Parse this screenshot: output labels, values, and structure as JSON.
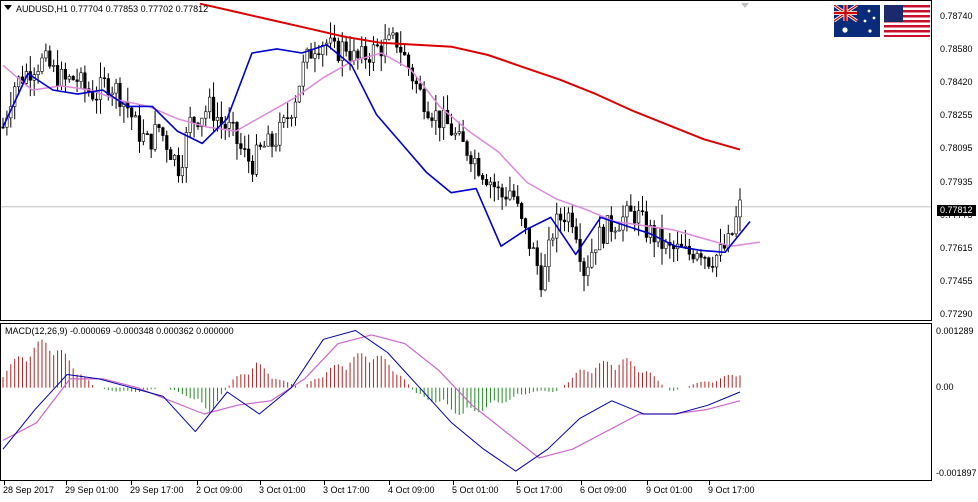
{
  "chart": {
    "title": "AUDUSD,H1",
    "ohlc": "0.77704 0.77853 0.77702 0.77812",
    "current_price": "0.77812"
  },
  "price_axis": [
    "0.78740",
    "0.78580",
    "0.78420",
    "0.78255",
    "0.78095",
    "0.77935",
    "0.77775",
    "0.77615",
    "0.77455",
    "0.77290"
  ],
  "macd": {
    "title": "MACD(12,26,9) -0.000069 -0.000348 0.000362 0.000000",
    "axis": [
      "0.001289",
      "0.00",
      "-0.001897"
    ]
  },
  "time_axis": [
    "28 Sep 2017",
    "29 Sep 01:00",
    "29 Sep 17:00",
    "2 Oct 09:00",
    "3 Oct 01:00",
    "3 Oct 17:00",
    "4 Oct 09:00",
    "5 Oct 01:00",
    "5 Oct 17:00",
    "6 Oct 09:00",
    "9 Oct 01:00",
    "9 Oct 17:00"
  ],
  "flags": {
    "left": "australia-flag-icon",
    "right": "usa-flag-icon"
  },
  "colors": {
    "candle": "#000000",
    "ma_red": "#dd0000",
    "ma_blue": "#0000cc",
    "ma_pink": "#dd88dd",
    "hist_up": "#b22222",
    "hist_down": "#228b22",
    "macd_blue": "#0000aa",
    "signal": "#cc66cc"
  },
  "chart_data": {
    "type": "candlestick",
    "title": "AUDUSD,H1",
    "ylim": [
      0.7729,
      0.7874
    ],
    "x": [
      "28 Sep 2017",
      "29 Sep 01:00",
      "29 Sep 17:00",
      "2 Oct 09:00",
      "3 Oct 01:00",
      "3 Oct 17:00",
      "4 Oct 09:00",
      "5 Oct 01:00",
      "5 Oct 17:00",
      "6 Oct 09:00",
      "9 Oct 01:00",
      "9 Oct 17:00"
    ],
    "close_path": [
      0.782,
      0.784,
      0.7845,
      0.785,
      0.7852,
      0.7846,
      0.7842,
      0.7844,
      0.7838,
      0.7836,
      0.7842,
      0.7838,
      0.783,
      0.7818,
      0.7812,
      0.782,
      0.781,
      0.78,
      0.7822,
      0.7826,
      0.783,
      0.7822,
      0.7818,
      0.7808,
      0.7802,
      0.781,
      0.7812,
      0.782,
      0.7832,
      0.785,
      0.786,
      0.7862,
      0.7856,
      0.786,
      0.7852,
      0.7855,
      0.7858,
      0.786,
      0.7862,
      0.785,
      0.7838,
      0.783,
      0.7824,
      0.782,
      0.7812,
      0.7808,
      0.78,
      0.7794,
      0.7786,
      0.779,
      0.7772,
      0.776,
      0.7744,
      0.777,
      0.7778,
      0.7776,
      0.775,
      0.7764,
      0.777,
      0.7774,
      0.7776,
      0.7778,
      0.777,
      0.7766,
      0.776,
      0.776,
      0.7758,
      0.7762,
      0.7756,
      0.7758,
      0.7764,
      0.7781
    ],
    "ma_red": [
      0.788,
      0.7876,
      0.7872,
      0.7868,
      0.7864,
      0.7861,
      0.786,
      0.7859,
      0.7855,
      0.7849,
      0.7843,
      0.7836,
      0.7828,
      0.7821,
      0.7814,
      0.7809
    ],
    "ma_blue": [
      0.782,
      0.7846,
      0.7838,
      0.7836,
      0.7838,
      0.783,
      0.783,
      0.7818,
      0.7812,
      0.7824,
      0.7856,
      0.7858,
      0.7856,
      0.786,
      0.785,
      0.7826,
      0.7812,
      0.7798,
      0.7788,
      0.779,
      0.7762,
      0.777,
      0.7776,
      0.7758,
      0.7776,
      0.7772,
      0.7768,
      0.7762,
      0.776,
      0.7759,
      0.7774
    ],
    "ma_pink": [
      0.785,
      0.7838,
      0.784,
      0.7838,
      0.7833,
      0.783,
      0.7824,
      0.782,
      0.7818,
      0.7826,
      0.7834,
      0.7844,
      0.7852,
      0.7856,
      0.7848,
      0.783,
      0.7818,
      0.7808,
      0.7793,
      0.7785,
      0.778,
      0.7774,
      0.7772,
      0.777,
      0.7766,
      0.7762,
      0.7764
    ],
    "macd_hist": [
      0.0004,
      0.0009,
      0.0012,
      0.0006,
      0.0,
      -0.0001,
      -0.0001,
      0.0,
      -0.0002,
      -0.0006,
      0.0002,
      0.0006,
      0.0002,
      0.0,
      0.0004,
      0.0007,
      0.0009,
      0.0005,
      -0.0002,
      -0.0004,
      -0.0007,
      -0.0005,
      -0.0003,
      -0.0001,
      -0.0001,
      0.0004,
      0.0006,
      0.0007,
      0.0004,
      -0.0001,
      0.0001,
      0.0002,
      0.0004
    ],
    "macd_line": [
      -0.0014,
      -0.0005,
      0.0003,
      0.0002,
      0.0,
      -0.0002,
      -0.001,
      -0.0001,
      -0.0006,
      0.0,
      0.0011,
      0.0013,
      0.0008,
      0.0,
      -0.0008,
      -0.0014,
      -0.0019,
      -0.0014,
      -0.0007,
      -0.0003,
      -0.0006,
      -0.0006,
      -0.0004,
      -0.0001
    ],
    "macd_signal": [
      -0.0012,
      -0.0008,
      0.0002,
      0.0002,
      0.0,
      -0.0003,
      -0.0006,
      -0.0004,
      -0.0003,
      0.0002,
      0.001,
      0.0012,
      0.001,
      0.0004,
      -0.0004,
      -0.001,
      -0.0016,
      -0.0014,
      -0.001,
      -0.0006,
      -0.0006,
      -0.0005,
      -0.0003
    ]
  }
}
